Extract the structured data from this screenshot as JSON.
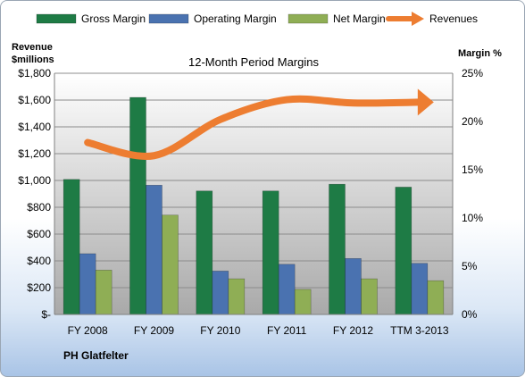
{
  "chart_data": {
    "type": "bar",
    "title": "12-Month Period Margins",
    "company": "PH Glatfelter",
    "y_left_label": [
      "Revenue",
      "$millions"
    ],
    "y_right_label": "Margin %",
    "categories": [
      "FY 2008",
      "FY 2009",
      "FY 2010",
      "FY 2011",
      "FY 2012",
      "TTM 3-2013"
    ],
    "y_left_ticks": [
      "$-",
      "$200",
      "$400",
      "$600",
      "$800",
      "$1,000",
      "$1,200",
      "$1,400",
      "$1,600",
      "$1,800"
    ],
    "y_right_ticks": [
      "0%",
      "5%",
      "10%",
      "15%",
      "20%",
      "25%"
    ],
    "ylim_left": [
      0,
      1800
    ],
    "ylim_right": [
      0,
      25
    ],
    "series": [
      {
        "name": "Gross Margin",
        "color": "#1e7b45",
        "axis": "right",
        "values": [
          14.0,
          22.5,
          12.8,
          12.8,
          13.5,
          13.2
        ]
      },
      {
        "name": "Operating Margin",
        "color": "#4a72b0",
        "axis": "right",
        "values": [
          6.3,
          13.4,
          4.5,
          5.2,
          5.8,
          5.3
        ]
      },
      {
        "name": "Net Margin",
        "color": "#8fae55",
        "axis": "right",
        "values": [
          4.6,
          10.3,
          3.7,
          2.6,
          3.7,
          3.5
        ]
      }
    ],
    "line_series": {
      "name": "Revenues",
      "color": "#ed7d31",
      "axis": "left",
      "values": [
        1283,
        1185,
        1455,
        1603,
        1578,
        1584
      ]
    },
    "grid": true,
    "legend": "top"
  }
}
